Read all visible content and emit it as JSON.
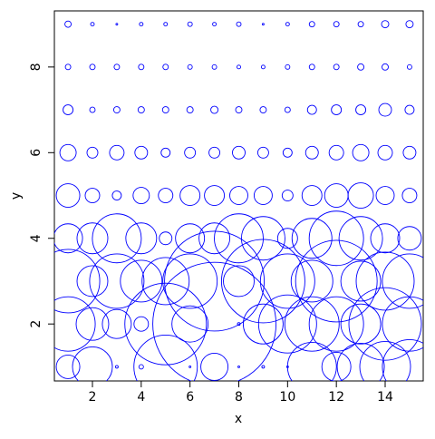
{
  "chart_data": {
    "type": "bubble",
    "xlabel": "x",
    "ylabel": "y",
    "color": "#0000ff",
    "xlim": [
      0.44,
      15.56
    ],
    "ylim": [
      0.67,
      9.31
    ],
    "xticks": [
      2,
      4,
      6,
      8,
      10,
      12,
      14
    ],
    "yticks": [
      2,
      4,
      6,
      8
    ],
    "x": [
      1,
      2,
      3,
      4,
      5,
      6,
      7,
      8,
      9,
      10,
      11,
      12,
      13,
      14,
      15,
      1,
      2,
      3,
      4,
      5,
      6,
      7,
      8,
      9,
      10,
      11,
      12,
      13,
      14,
      15,
      1,
      2,
      3,
      4,
      5,
      6,
      7,
      8,
      9,
      10,
      11,
      12,
      13,
      14,
      15,
      1,
      2,
      3,
      4,
      5,
      6,
      7,
      8,
      9,
      10,
      11,
      12,
      13,
      14,
      15,
      1,
      2,
      3,
      4,
      5,
      6,
      7,
      8,
      9,
      10,
      11,
      12,
      13,
      14,
      15,
      1,
      2,
      3,
      4,
      5,
      6,
      7,
      8,
      9,
      10,
      11,
      12,
      13,
      14,
      15,
      1,
      2,
      3,
      4,
      5,
      6,
      7,
      8,
      9,
      10,
      11,
      12,
      13,
      14,
      15,
      1,
      2,
      3,
      4,
      5,
      6,
      7,
      8,
      9,
      10,
      11,
      12,
      13,
      14,
      15,
      1,
      2,
      3,
      4,
      5,
      6,
      7,
      8,
      9,
      10,
      11,
      12,
      13,
      14,
      15
    ],
    "y": [
      1,
      1,
      1,
      1,
      1,
      1,
      1,
      1,
      1,
      1,
      1,
      1,
      1,
      1,
      1,
      2,
      2,
      2,
      2,
      2,
      2,
      2,
      2,
      2,
      2,
      2,
      2,
      2,
      2,
      2,
      3,
      3,
      3,
      3,
      3,
      3,
      3,
      3,
      3,
      3,
      3,
      3,
      3,
      3,
      3,
      4,
      4,
      4,
      4,
      4,
      4,
      4,
      4,
      4,
      4,
      4,
      4,
      4,
      4,
      4,
      5,
      5,
      5,
      5,
      5,
      5,
      5,
      5,
      5,
      5,
      5,
      5,
      5,
      5,
      5,
      6,
      6,
      6,
      6,
      6,
      6,
      6,
      6,
      6,
      6,
      6,
      6,
      6,
      6,
      6,
      7,
      7,
      7,
      7,
      7,
      7,
      7,
      7,
      7,
      7,
      7,
      7,
      7,
      7,
      7,
      8,
      8,
      8,
      8,
      8,
      8,
      8,
      8,
      8,
      8,
      8,
      8,
      8,
      8,
      8,
      9,
      9,
      9,
      9,
      9,
      9,
      9,
      9,
      9,
      9,
      9,
      9,
      9,
      9,
      9
    ],
    "sizes": [
      13,
      22,
      1.5,
      2.5,
      35,
      1,
      15,
      1,
      1.5,
      1,
      27,
      16,
      26,
      28,
      30,
      30,
      18,
      16,
      8,
      45,
      20,
      68,
      1.5,
      22,
      32,
      30,
      30,
      22,
      40,
      30,
      35,
      17,
      30,
      23,
      26,
      30,
      55,
      17,
      46,
      30,
      23,
      45,
      22,
      32,
      30,
      16,
      17,
      27,
      17,
      7,
      16,
      17,
      27,
      24,
      11,
      22,
      30,
      24,
      16,
      13,
      13,
      8,
      5,
      9,
      8,
      11,
      11,
      10,
      10,
      6,
      11,
      13,
      14,
      10,
      8,
      9,
      6,
      8,
      7,
      5,
      6,
      6,
      7,
      6,
      5,
      7,
      8,
      9,
      8,
      7,
      5.5,
      3,
      3.5,
      3.5,
      3.5,
      3.5,
      4,
      3.5,
      3.5,
      3,
      5,
      5.5,
      5.5,
      7,
      5,
      3,
      3,
      3,
      3,
      3,
      2.5,
      2.5,
      2,
      2,
      2.5,
      3,
      3,
      3.5,
      3.5,
      2.5,
      3.5,
      2,
      1,
      2,
      2,
      2.5,
      2,
      2.5,
      1,
      2,
      3,
      3,
      3,
      4,
      4
    ]
  }
}
